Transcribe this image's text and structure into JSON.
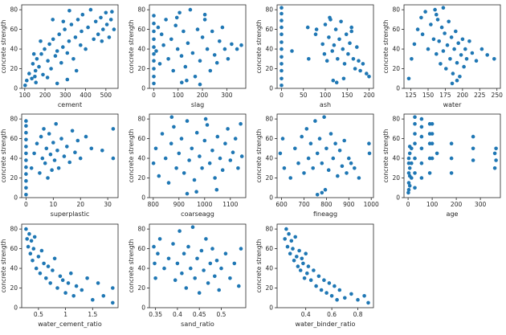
{
  "figure": {
    "y_label": "concrete strength",
    "point_color": "#1f77b4"
  },
  "chart_data": [
    {
      "type": "scatter",
      "xlabel": "cement",
      "ylabel": "concrete strength",
      "xlim": [
        85,
        560
      ],
      "ylim": [
        0,
        85
      ],
      "xticks": [
        100,
        200,
        300,
        400,
        500
      ],
      "yticks": [
        0,
        20,
        40,
        60,
        80
      ],
      "x": [
        102,
        110,
        122,
        135,
        140,
        150,
        153,
        160,
        170,
        182,
        190,
        198,
        214,
        222,
        230,
        240,
        251,
        260,
        270,
        280,
        288,
        297,
        310,
        318,
        330,
        340,
        350,
        362,
        375,
        380,
        385,
        400,
        412,
        425,
        440,
        450,
        462,
        475,
        480,
        486,
        500,
        505,
        516,
        525,
        530,
        540,
        310,
        260,
        155,
        212,
        355,
        290,
        145,
        178,
        238,
        320
      ],
      "y": [
        3,
        8,
        15,
        10,
        25,
        12,
        18,
        30,
        22,
        35,
        14,
        40,
        28,
        45,
        20,
        50,
        33,
        38,
        55,
        26,
        42,
        60,
        36,
        48,
        65,
        30,
        52,
        70,
        44,
        58,
        75,
        40,
        62,
        80,
        50,
        68,
        55,
        72,
        48,
        60,
        77,
        65,
        52,
        70,
        78,
        60,
        9,
        5,
        6,
        11,
        18,
        68,
        35,
        48,
        70,
        79
      ]
    },
    {
      "type": "scatter",
      "xlabel": "slag",
      "ylabel": "concrete strength",
      "xlim": [
        -18,
        378
      ],
      "ylim": [
        0,
        85
      ],
      "xticks": [
        0,
        100,
        200,
        300
      ],
      "yticks": [
        0,
        20,
        40,
        60,
        80
      ],
      "x": [
        0,
        0,
        0,
        0,
        0,
        0,
        0,
        0,
        0,
        0,
        10,
        18,
        25,
        32,
        40,
        50,
        60,
        72,
        80,
        90,
        98,
        106,
        114,
        122,
        130,
        140,
        150,
        160,
        170,
        180,
        190,
        200,
        210,
        220,
        232,
        240,
        250,
        260,
        270,
        282,
        292,
        305,
        320,
        342,
        360,
        115,
        135,
        190,
        95,
        210
      ],
      "y": [
        5,
        12,
        20,
        28,
        35,
        42,
        50,
        58,
        66,
        74,
        38,
        62,
        25,
        55,
        44,
        70,
        30,
        50,
        18,
        64,
        40,
        77,
        33,
        58,
        22,
        46,
        80,
        36,
        12,
        60,
        28,
        52,
        70,
        40,
        18,
        58,
        34,
        26,
        48,
        62,
        40,
        30,
        45,
        40,
        44,
        6,
        8,
        4,
        72,
        75
      ]
    },
    {
      "type": "scatter",
      "xlabel": "ash",
      "ylabel": "concrete strength",
      "xlim": [
        -10,
        210
      ],
      "ylim": [
        0,
        85
      ],
      "xticks": [
        0,
        50,
        100,
        150,
        200
      ],
      "yticks": [
        0,
        20,
        40,
        60,
        80
      ],
      "x": [
        0,
        0,
        0,
        0,
        0,
        0,
        0,
        0,
        0,
        0,
        0,
        0,
        24,
        60,
        62,
        78,
        80,
        94,
        98,
        100,
        104,
        108,
        112,
        116,
        120,
        124,
        128,
        132,
        136,
        140,
        144,
        148,
        152,
        156,
        160,
        164,
        168,
        172,
        176,
        180,
        186,
        194,
        200,
        118,
        126,
        142,
        110,
        160
      ],
      "y": [
        3,
        10,
        18,
        25,
        32,
        40,
        47,
        55,
        62,
        69,
        76,
        82,
        38,
        62,
        30,
        55,
        60,
        45,
        35,
        65,
        28,
        52,
        70,
        38,
        44,
        60,
        30,
        50,
        68,
        40,
        25,
        55,
        35,
        46,
        62,
        30,
        20,
        42,
        28,
        18,
        25,
        15,
        12,
        8,
        6,
        10,
        72,
        58
      ]
    },
    {
      "type": "scatter",
      "xlabel": "water",
      "ylabel": "concrete strength",
      "xlim": [
        115,
        255
      ],
      "ylim": [
        0,
        85
      ],
      "xticks": [
        125,
        150,
        175,
        200,
        225,
        250
      ],
      "yticks": [
        0,
        20,
        40,
        60,
        80
      ],
      "x": [
        122,
        126,
        130,
        135,
        140,
        142,
        146,
        150,
        154,
        158,
        160,
        162,
        164,
        166,
        168,
        170,
        172,
        174,
        176,
        178,
        180,
        182,
        184,
        186,
        188,
        190,
        192,
        194,
        196,
        198,
        200,
        202,
        204,
        206,
        210,
        214,
        220,
        228,
        236,
        246,
        185,
        192,
        162,
        172
      ],
      "y": [
        10,
        30,
        45,
        60,
        72,
        55,
        78,
        40,
        65,
        50,
        80,
        35,
        70,
        48,
        25,
        62,
        38,
        56,
        20,
        44,
        68,
        30,
        52,
        15,
        40,
        58,
        26,
        46,
        12,
        34,
        50,
        22,
        40,
        30,
        48,
        36,
        28,
        40,
        34,
        30,
        5,
        8,
        75,
        82
      ]
    },
    {
      "type": "scatter",
      "xlabel": "superplastic",
      "ylabel": "concrete strength",
      "xlim": [
        -1.6,
        33.8
      ],
      "ylim": [
        0,
        85
      ],
      "xticks": [
        0,
        10,
        20,
        30
      ],
      "yticks": [
        0,
        20,
        40,
        60,
        80
      ],
      "x": [
        0,
        0,
        0,
        0,
        0,
        0,
        0,
        0,
        0,
        0,
        0,
        0,
        2,
        3,
        4,
        5,
        5.5,
        6,
        6.5,
        7,
        7.5,
        8,
        8.5,
        9,
        9.5,
        10,
        10.5,
        11,
        11.5,
        12,
        13,
        14,
        15,
        16,
        17,
        18,
        19,
        20,
        22,
        24,
        28,
        32,
        32
      ],
      "y": [
        3,
        10,
        17,
        24,
        31,
        38,
        45,
        52,
        59,
        66,
        73,
        78,
        30,
        45,
        55,
        25,
        62,
        40,
        70,
        35,
        50,
        20,
        65,
        44,
        28,
        56,
        38,
        75,
        48,
        30,
        60,
        42,
        52,
        36,
        68,
        46,
        58,
        40,
        62,
        50,
        48,
        70,
        40
      ]
    },
    {
      "type": "scatter",
      "xlabel": "coarseagg",
      "ylabel": "concrete strength",
      "xlim": [
        785,
        1160
      ],
      "ylim": [
        0,
        85
      ],
      "xticks": [
        800,
        900,
        1000,
        1100
      ],
      "yticks": [
        0,
        20,
        40,
        60,
        80
      ],
      "x": [
        801,
        810,
        822,
        835,
        848,
        860,
        870,
        880,
        890,
        900,
        910,
        920,
        932,
        940,
        950,
        960,
        970,
        980,
        990,
        1000,
        1010,
        1020,
        1030,
        1040,
        1050,
        1060,
        1070,
        1080,
        1090,
        1100,
        1110,
        1120,
        1130,
        1140,
        1145,
        932,
        968,
        1047,
        872,
        1004
      ],
      "y": [
        35,
        50,
        22,
        65,
        40,
        15,
        55,
        72,
        30,
        45,
        60,
        25,
        78,
        38,
        50,
        18,
        66,
        42,
        30,
        58,
        74,
        35,
        48,
        20,
        62,
        40,
        28,
        55,
        70,
        38,
        46,
        60,
        30,
        75,
        42,
        4,
        6,
        8,
        82,
        80
      ]
    },
    {
      "type": "scatter",
      "xlabel": "fineagg",
      "ylabel": "concrete strength",
      "xlim": [
        580,
        1010
      ],
      "ylim": [
        0,
        85
      ],
      "xticks": [
        600,
        700,
        800,
        900,
        1000
      ],
      "yticks": [
        0,
        20,
        40,
        60,
        80
      ],
      "x": [
        594,
        605,
        612,
        640,
        660,
        675,
        690,
        700,
        712,
        720,
        730,
        740,
        750,
        760,
        770,
        780,
        790,
        800,
        810,
        820,
        830,
        840,
        850,
        860,
        870,
        880,
        890,
        900,
        910,
        925,
        945,
        990,
        992,
        780,
        795,
        760
      ],
      "y": [
        45,
        60,
        30,
        20,
        50,
        35,
        62,
        25,
        70,
        40,
        55,
        30,
        78,
        45,
        60,
        35,
        82,
        50,
        28,
        65,
        40,
        55,
        22,
        48,
        32,
        58,
        25,
        40,
        35,
        30,
        20,
        55,
        45,
        5,
        8,
        3
      ]
    },
    {
      "type": "scatter",
      "xlabel": "age",
      "ylabel": "concrete strength",
      "xlim": [
        -17,
        383
      ],
      "ylim": [
        0,
        85
      ],
      "xticks": [
        0,
        100,
        200,
        300
      ],
      "yticks": [
        0,
        20,
        40,
        60,
        80
      ],
      "x": [
        1,
        3,
        3,
        3,
        3,
        3,
        7,
        7,
        7,
        7,
        7,
        14,
        14,
        14,
        28,
        28,
        28,
        28,
        28,
        28,
        28,
        56,
        56,
        56,
        56,
        56,
        56,
        90,
        90,
        90,
        90,
        90,
        100,
        100,
        100,
        100,
        120,
        180,
        180,
        180,
        270,
        270,
        270,
        360,
        360,
        365,
        365
      ],
      "y": [
        5,
        8,
        15,
        25,
        35,
        40,
        12,
        22,
        30,
        45,
        52,
        20,
        35,
        50,
        10,
        25,
        40,
        55,
        65,
        75,
        82,
        20,
        35,
        50,
        62,
        72,
        80,
        25,
        40,
        55,
        65,
        75,
        40,
        55,
        65,
        75,
        45,
        25,
        40,
        55,
        38,
        50,
        62,
        30,
        45,
        38,
        50
      ]
    },
    {
      "type": "scatter",
      "xlabel": "water_cement_ratio",
      "ylabel": "concrete strength",
      "xlim": [
        0.19,
        1.97
      ],
      "ylim": [
        0,
        85
      ],
      "xticks": [
        0.5,
        1.0,
        1.5
      ],
      "yticks": [
        0,
        20,
        40,
        60,
        80
      ],
      "x": [
        0.27,
        0.29,
        0.31,
        0.33,
        0.35,
        0.37,
        0.39,
        0.41,
        0.43,
        0.46,
        0.5,
        0.53,
        0.56,
        0.6,
        0.64,
        0.68,
        0.72,
        0.76,
        0.8,
        0.85,
        0.9,
        0.95,
        1.0,
        1.05,
        1.1,
        1.15,
        1.2,
        1.3,
        1.4,
        1.5,
        1.6,
        1.7,
        1.87,
        1.87
      ],
      "y": [
        80,
        70,
        62,
        75,
        55,
        68,
        48,
        60,
        72,
        40,
        52,
        35,
        58,
        45,
        30,
        42,
        25,
        38,
        50,
        20,
        32,
        28,
        15,
        25,
        35,
        12,
        22,
        18,
        30,
        8,
        25,
        12,
        20,
        5
      ]
    },
    {
      "type": "scatter",
      "xlabel": "sand_ratio",
      "ylabel": "concrete strength",
      "xlim": [
        0.336,
        0.556
      ],
      "ylim": [
        0,
        85
      ],
      "xticks": [
        0.35,
        0.4,
        0.45,
        0.5
      ],
      "yticks": [
        0,
        20,
        40,
        60,
        80
      ],
      "x": [
        0.346,
        0.348,
        0.35,
        0.355,
        0.36,
        0.37,
        0.38,
        0.39,
        0.395,
        0.4,
        0.405,
        0.41,
        0.415,
        0.42,
        0.425,
        0.43,
        0.435,
        0.44,
        0.445,
        0.45,
        0.455,
        0.46,
        0.465,
        0.47,
        0.475,
        0.48,
        0.485,
        0.49,
        0.495,
        0.5,
        0.51,
        0.52,
        0.53,
        0.54,
        0.545
      ],
      "y": [
        62,
        45,
        30,
        55,
        70,
        40,
        50,
        65,
        28,
        45,
        78,
        35,
        55,
        20,
        62,
        40,
        82,
        30,
        50,
        15,
        58,
        38,
        70,
        25,
        45,
        60,
        32,
        48,
        18,
        40,
        55,
        30,
        45,
        22,
        60
      ]
    },
    {
      "type": "scatter",
      "xlabel": "water_binder_ratio",
      "ylabel": "concrete strength",
      "xlim": [
        0.18,
        0.92
      ],
      "ylim": [
        0,
        85
      ],
      "xticks": [
        0.4,
        0.6,
        0.8
      ],
      "yticks": [
        0,
        20,
        40,
        60,
        80
      ],
      "x": [
        0.24,
        0.25,
        0.26,
        0.27,
        0.28,
        0.29,
        0.3,
        0.31,
        0.32,
        0.33,
        0.34,
        0.35,
        0.36,
        0.37,
        0.38,
        0.39,
        0.4,
        0.41,
        0.42,
        0.44,
        0.46,
        0.48,
        0.5,
        0.52,
        0.54,
        0.56,
        0.58,
        0.6,
        0.62,
        0.64,
        0.66,
        0.7,
        0.75,
        0.8,
        0.85,
        0.88
      ],
      "y": [
        70,
        80,
        62,
        75,
        55,
        68,
        60,
        48,
        72,
        52,
        42,
        58,
        38,
        50,
        45,
        30,
        55,
        35,
        42,
        28,
        38,
        22,
        32,
        18,
        28,
        15,
        25,
        12,
        22,
        8,
        18,
        10,
        14,
        8,
        12,
        5
      ]
    }
  ]
}
